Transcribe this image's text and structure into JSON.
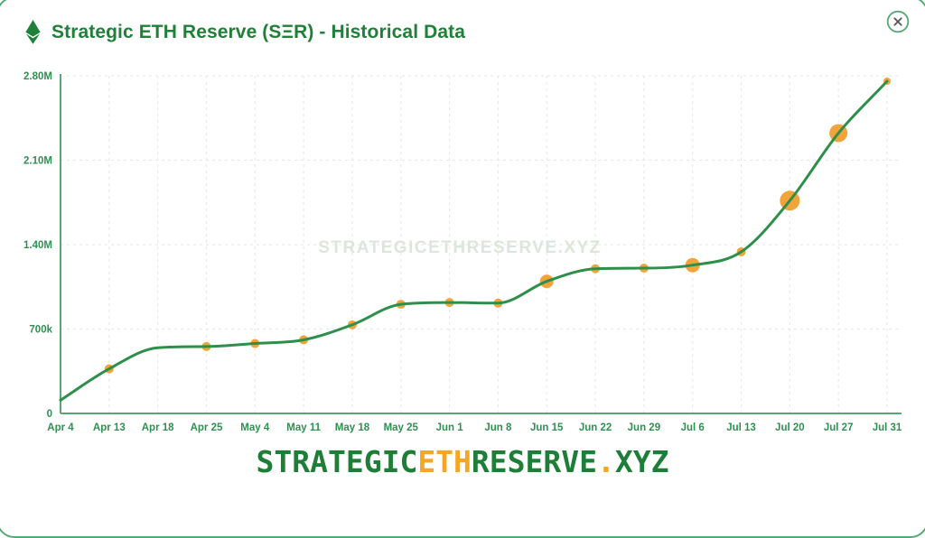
{
  "header": {
    "title": "Strategic ETH Reserve (SΞR) - Historical Data"
  },
  "colors": {
    "title_green": "#1f8138",
    "line_green": "#2e8f4b",
    "axis_green": "#5ba475",
    "tick_green": "#2e9150",
    "dot_orange": "#f2a43c",
    "grid_gray": "#e9e9e9",
    "watermark_gray": "#dce6dc",
    "footer_green": "#1e7e38",
    "footer_orange": "#f5a623",
    "border_green": "#55a973"
  },
  "chart_data": {
    "type": "line",
    "title": "Strategic ETH Reserve (SΞR) - Historical Data",
    "categories": [
      "Apr 4",
      "Apr 13",
      "Apr 18",
      "Apr 25",
      "May 4",
      "May 11",
      "May 18",
      "May 25",
      "Jun 1",
      "Jun 8",
      "Jun 15",
      "Jun 22",
      "Jun 29",
      "Jul 6",
      "Jul 13",
      "Jul 20",
      "Jul 27",
      "Jul 31"
    ],
    "values": [
      110000,
      370000,
      545000,
      555000,
      580000,
      610000,
      735000,
      905000,
      920000,
      915000,
      1095000,
      1200000,
      1205000,
      1230000,
      1340000,
      1765000,
      2325000,
      2755000
    ],
    "dot_radii": [
      0,
      5,
      0,
      5,
      5,
      5,
      5,
      5,
      5,
      5,
      7.5,
      5,
      5,
      8,
      5,
      11,
      10,
      4
    ],
    "ylim": [
      0,
      2800000
    ],
    "y_ticks": [
      {
        "label": "0",
        "value": 0
      },
      {
        "label": "700k",
        "value": 700000
      },
      {
        "label": "1.40M",
        "value": 1400000
      },
      {
        "label": "2.10M",
        "value": 2100000
      },
      {
        "label": "2.80M",
        "value": 2800000
      }
    ],
    "grid": true,
    "legend_position": "none",
    "watermark": "STRATEGICETHRESERVE.XYZ"
  },
  "footer": {
    "segments": [
      {
        "text": "STRATEGIC",
        "color": "green"
      },
      {
        "text": "ETH",
        "color": "orange"
      },
      {
        "text": "RESERVE",
        "color": "green"
      },
      {
        "text": ".",
        "color": "orange"
      },
      {
        "text": "XYZ",
        "color": "green"
      }
    ]
  }
}
